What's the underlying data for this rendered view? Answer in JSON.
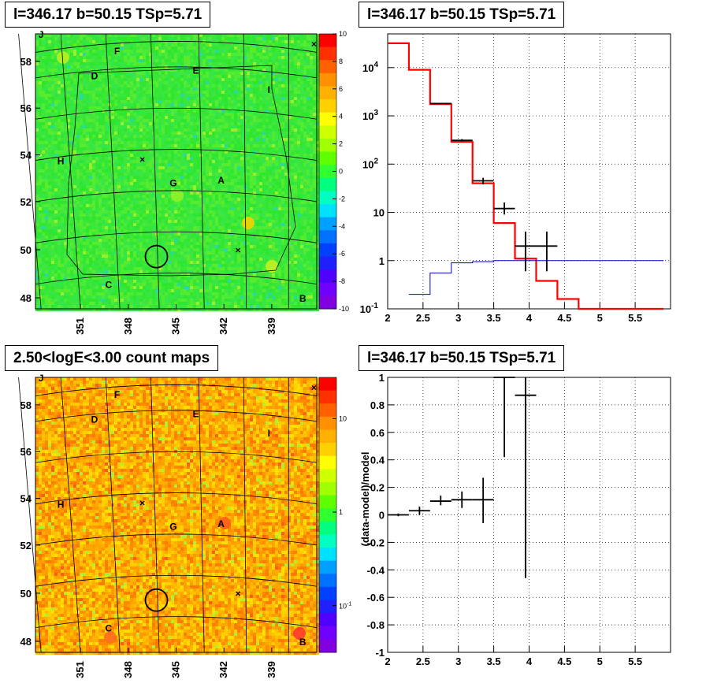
{
  "panels": {
    "tl_title": "l=346.17 b=50.15 TSp=5.71",
    "tr_title": "l=346.17 b=50.15 TSp=5.71",
    "bl_title": "2.50<logE<3.00 count maps",
    "br_title": "l=346.17 b=50.15 TSp=5.71"
  },
  "colors": {
    "data": "#000000",
    "model": "#ff0000",
    "background_model": "#0000cc"
  },
  "chart_data": [
    {
      "type": "heatmap",
      "panel": "top-left",
      "title": "l=346.17 b=50.15 TSp=5.71",
      "x_ticks": [
        "351",
        "348",
        "345",
        "342",
        "339"
      ],
      "y_ticks": [
        "48",
        "50",
        "52",
        "54",
        "56",
        "58"
      ],
      "colorbar_ticks": [
        "10",
        "8",
        "6",
        "4",
        "2",
        "0",
        "-2",
        "-4",
        "-6",
        "-8",
        "-10"
      ],
      "colorbar_range": [
        -10,
        10
      ],
      "regions": [
        "J",
        "F",
        "D",
        "E",
        "I",
        "H",
        "G",
        "A",
        "C",
        "B"
      ],
      "source_marker": "circle",
      "palette": "significance (green dominant, values near 0-2)"
    },
    {
      "type": "line",
      "panel": "top-right",
      "title": "l=346.17 b=50.15 TSp=5.71",
      "yscale": "log",
      "xlim": [
        2,
        6
      ],
      "ylim": [
        0.1,
        50000
      ],
      "x_ticks": [
        "2",
        "2.5",
        "3",
        "3.5",
        "4",
        "4.5",
        "5",
        "5.5"
      ],
      "y_ticks": [
        "10^4",
        "10^3",
        "10^2",
        "10",
        "1",
        "10^-1"
      ],
      "series": [
        {
          "role": "model",
          "color": "#ff0000",
          "bin_edges": [
            2.0,
            2.3,
            2.6,
            2.9,
            3.2,
            3.5,
            3.8,
            4.1,
            4.4,
            4.7,
            5.0,
            5.3,
            5.6,
            5.9
          ],
          "values": [
            32000,
            9000,
            1750,
            290,
            40,
            6,
            1.1,
            0.38,
            0.16,
            0.1,
            0.1,
            0.1,
            0.1
          ]
        },
        {
          "role": "background",
          "color": "#0000cc",
          "bin_edges": [
            2.3,
            2.6,
            2.9,
            3.2,
            3.5,
            3.8,
            5.9
          ],
          "values": [
            0.2,
            0.55,
            0.9,
            0.95,
            1.0,
            1.0
          ]
        },
        {
          "role": "data",
          "color": "#000000",
          "points": [
            {
              "x": 2.75,
              "xerr": 0.15,
              "y": 1800,
              "ylo": 1750,
              "yhi": 1850
            },
            {
              "x": 3.05,
              "xerr": 0.15,
              "y": 310,
              "ylo": 290,
              "yhi": 330
            },
            {
              "x": 3.35,
              "xerr": 0.15,
              "y": 45,
              "ylo": 38,
              "yhi": 52
            },
            {
              "x": 3.65,
              "xerr": 0.15,
              "y": 12,
              "ylo": 9,
              "yhi": 16
            },
            {
              "x": 3.95,
              "xerr": 0.15,
              "y": 2,
              "ylo": 0.6,
              "yhi": 4
            },
            {
              "x": 4.25,
              "xerr": 0.15,
              "y": 2,
              "ylo": 0.6,
              "yhi": 4
            }
          ]
        }
      ]
    },
    {
      "type": "heatmap",
      "panel": "bottom-left",
      "title": "2.50<logE<3.00 count maps",
      "x_ticks": [
        "351",
        "348",
        "345",
        "342",
        "339"
      ],
      "y_ticks": [
        "48",
        "50",
        "52",
        "54",
        "56",
        "58"
      ],
      "colorbar_ticks": [
        "10",
        "1",
        "10^-1"
      ],
      "colorbar_scale": "log",
      "regions": [
        "J",
        "F",
        "D",
        "E",
        "I",
        "H",
        "G",
        "A",
        "C",
        "B"
      ],
      "source_marker": "circle",
      "palette": "counts (orange/yellow dominant)"
    },
    {
      "type": "scatter",
      "panel": "bottom-right",
      "title": "l=346.17 b=50.15 TSp=5.71",
      "ylabel": "(data-model)/model",
      "xlim": [
        2,
        6
      ],
      "ylim": [
        -1,
        1
      ],
      "x_ticks": [
        "2",
        "2.5",
        "3",
        "3.5",
        "4",
        "4.5",
        "5",
        "5.5"
      ],
      "y_ticks": [
        "1",
        "0.8",
        "0.6",
        "0.4",
        "0.2",
        "0",
        "-0.2",
        "-0.4",
        "-0.6",
        "-0.8",
        "-1"
      ],
      "points": [
        {
          "x": 2.15,
          "xerr": 0.15,
          "y": 0.0,
          "ylo": -0.01,
          "yhi": 0.01
        },
        {
          "x": 2.45,
          "xerr": 0.15,
          "y": 0.03,
          "ylo": 0.0,
          "yhi": 0.06
        },
        {
          "x": 2.75,
          "xerr": 0.15,
          "y": 0.1,
          "ylo": 0.07,
          "yhi": 0.14
        },
        {
          "x": 3.05,
          "xerr": 0.15,
          "y": 0.11,
          "ylo": 0.05,
          "yhi": 0.17
        },
        {
          "x": 3.35,
          "xerr": 0.15,
          "y": 0.11,
          "ylo": -0.06,
          "yhi": 0.27
        },
        {
          "x": 3.65,
          "xerr": 0.15,
          "y": 1.0,
          "ylo": 0.42,
          "yhi": 1.0
        },
        {
          "x": 3.95,
          "xerr": 0.15,
          "y": 0.87,
          "ylo": -0.46,
          "yhi": 1.0
        }
      ]
    }
  ]
}
